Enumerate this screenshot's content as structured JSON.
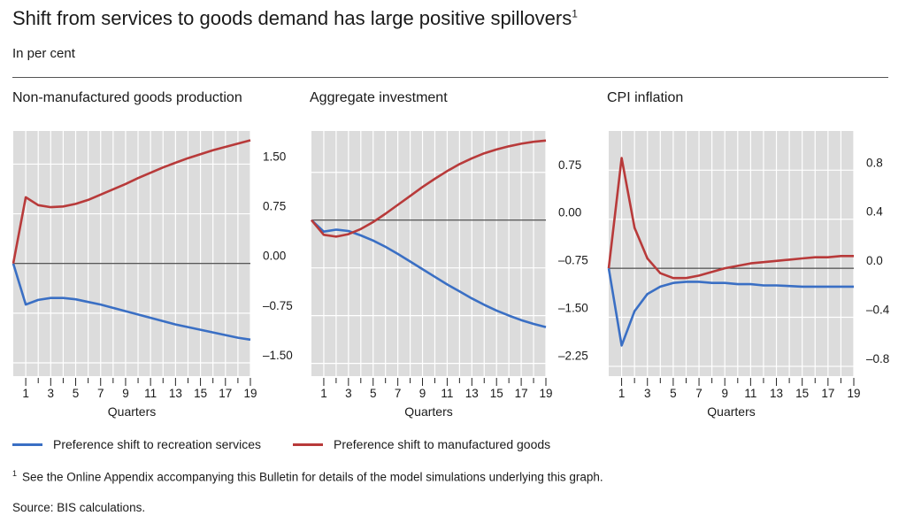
{
  "header": {
    "title": "Shift from services to goods demand has large positive spillovers",
    "title_note": "1",
    "subtitle": "In per cent"
  },
  "legend": {
    "items": [
      {
        "label": "Preference shift to recreation services",
        "color": "#3a6fc4"
      },
      {
        "label": "Preference shift to manufactured goods",
        "color": "#b83a3a"
      }
    ]
  },
  "footnote": {
    "marker": "1",
    "text": "See the Online Appendix accompanying this Bulletin for details of the model simulations underlying this graph."
  },
  "source": "Source: BIS calculations.",
  "chart_data": [
    {
      "type": "line",
      "title": "Non-manufactured goods production",
      "xlabel": "Quarters",
      "x": [
        0,
        1,
        2,
        3,
        4,
        5,
        6,
        7,
        8,
        9,
        10,
        11,
        12,
        13,
        14,
        15,
        16,
        17,
        18,
        19
      ],
      "xticks": [
        1,
        3,
        5,
        7,
        9,
        11,
        13,
        15,
        17,
        19
      ],
      "yticks": [
        1.5,
        0.75,
        0.0,
        -0.75,
        -1.5
      ],
      "ytick_labels": [
        "1.50",
        "0.75",
        "0.00",
        "–0.75",
        "–1.50"
      ],
      "ylim": [
        -1.7,
        2.0
      ],
      "zero_line": 0.0,
      "series": [
        {
          "name": "Preference shift to recreation services",
          "values": [
            0,
            -0.62,
            -0.55,
            -0.52,
            -0.52,
            -0.54,
            -0.58,
            -0.62,
            -0.67,
            -0.72,
            -0.77,
            -0.82,
            -0.87,
            -0.92,
            -0.96,
            -1.0,
            -1.04,
            -1.08,
            -1.12,
            -1.15
          ]
        },
        {
          "name": "Preference shift to manufactured goods",
          "values": [
            0,
            1.0,
            0.88,
            0.85,
            0.86,
            0.9,
            0.96,
            1.04,
            1.12,
            1.2,
            1.29,
            1.37,
            1.45,
            1.52,
            1.59,
            1.65,
            1.71,
            1.76,
            1.81,
            1.86
          ]
        }
      ]
    },
    {
      "type": "line",
      "title": "Aggregate investment",
      "xlabel": "Quarters",
      "x": [
        0,
        1,
        2,
        3,
        4,
        5,
        6,
        7,
        8,
        9,
        10,
        11,
        12,
        13,
        14,
        15,
        16,
        17,
        18,
        19
      ],
      "xticks": [
        1,
        3,
        5,
        7,
        9,
        11,
        13,
        15,
        17,
        19
      ],
      "yticks": [
        0.75,
        0.0,
        -0.75,
        -1.5,
        -2.25
      ],
      "ytick_labels": [
        "0.75",
        "0.00",
        "–0.75",
        "–1.50",
        "–2.25"
      ],
      "ylim": [
        -2.45,
        1.4
      ],
      "zero_line": 0.0,
      "series": [
        {
          "name": "Preference shift to recreation services",
          "values": [
            0,
            -0.18,
            -0.15,
            -0.17,
            -0.24,
            -0.32,
            -0.42,
            -0.53,
            -0.65,
            -0.77,
            -0.89,
            -1.01,
            -1.12,
            -1.23,
            -1.33,
            -1.42,
            -1.5,
            -1.57,
            -1.63,
            -1.68
          ]
        },
        {
          "name": "Preference shift to manufactured goods",
          "values": [
            0,
            -0.23,
            -0.26,
            -0.22,
            -0.14,
            -0.03,
            0.1,
            0.24,
            0.38,
            0.52,
            0.65,
            0.77,
            0.88,
            0.97,
            1.05,
            1.11,
            1.16,
            1.2,
            1.23,
            1.25
          ]
        }
      ]
    },
    {
      "type": "line",
      "title": "CPI inflation",
      "xlabel": "Quarters",
      "x": [
        0,
        1,
        2,
        3,
        4,
        5,
        6,
        7,
        8,
        9,
        10,
        11,
        12,
        13,
        14,
        15,
        16,
        17,
        18,
        19
      ],
      "xticks": [
        1,
        3,
        5,
        7,
        9,
        11,
        13,
        15,
        17,
        19
      ],
      "yticks": [
        0.8,
        0.4,
        0.0,
        -0.4,
        -0.8
      ],
      "ytick_labels": [
        "0.8",
        "0.4",
        "0.0",
        "–0.4",
        "–0.8"
      ],
      "ylim": [
        -0.88,
        1.12
      ],
      "zero_line": 0.0,
      "series": [
        {
          "name": "Preference shift to recreation services",
          "values": [
            0,
            -0.63,
            -0.35,
            -0.21,
            -0.15,
            -0.12,
            -0.11,
            -0.11,
            -0.12,
            -0.12,
            -0.13,
            -0.13,
            -0.14,
            -0.14,
            -0.145,
            -0.15,
            -0.15,
            -0.15,
            -0.15,
            -0.15
          ]
        },
        {
          "name": "Preference shift to manufactured goods",
          "values": [
            0,
            0.9,
            0.33,
            0.08,
            -0.04,
            -0.08,
            -0.08,
            -0.06,
            -0.03,
            0.0,
            0.02,
            0.04,
            0.05,
            0.06,
            0.07,
            0.08,
            0.09,
            0.09,
            0.1,
            0.1
          ]
        }
      ]
    }
  ]
}
